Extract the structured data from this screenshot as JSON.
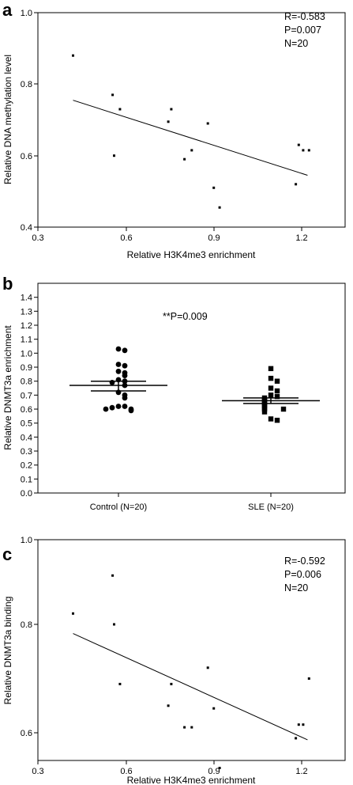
{
  "chart_data": [
    {
      "panel_letter": "a",
      "type": "scatter",
      "xlabel": "Relative H3K4me3 enrichment",
      "ylabel": "Relative DNA methylation level",
      "xlim": [
        0.3,
        1.25
      ],
      "ylim": [
        0.4,
        1.0
      ],
      "xticks": [
        "0.3",
        "0.6",
        "0.9",
        "1.2"
      ],
      "yticks": [
        "0.4",
        "0.6",
        "0.8",
        "1.0"
      ],
      "annotations": [
        "R=-0.583",
        "P=0.007",
        "N=20"
      ],
      "points": [
        {
          "x": 0.42,
          "y": 0.88
        },
        {
          "x": 0.555,
          "y": 0.77
        },
        {
          "x": 0.56,
          "y": 0.6
        },
        {
          "x": 0.58,
          "y": 0.73
        },
        {
          "x": 0.745,
          "y": 0.695
        },
        {
          "x": 0.755,
          "y": 0.73
        },
        {
          "x": 0.8,
          "y": 0.59
        },
        {
          "x": 0.825,
          "y": 0.615
        },
        {
          "x": 0.88,
          "y": 0.69
        },
        {
          "x": 0.9,
          "y": 0.51
        },
        {
          "x": 0.92,
          "y": 0.455
        },
        {
          "x": 1.18,
          "y": 0.52
        },
        {
          "x": 1.19,
          "y": 0.63
        },
        {
          "x": 1.205,
          "y": 0.615
        },
        {
          "x": 1.225,
          "y": 0.615
        }
      ],
      "fit_line": [
        {
          "x": 0.42,
          "y": 0.755
        },
        {
          "x": 1.22,
          "y": 0.545
        }
      ]
    },
    {
      "panel_letter": "b",
      "type": "scatter",
      "ylabel": "Relative DNMT3a enrichment",
      "categories": [
        "Control (N=20)",
        "SLE (N=20)"
      ],
      "ylim": [
        0.0,
        1.5
      ],
      "yticks": [
        "0.0",
        "0.1",
        "0.2",
        "0.3",
        "0.4",
        "0.5",
        "0.6",
        "0.7",
        "0.8",
        "0.9",
        "1.0",
        "1.1",
        "1.2",
        "1.3",
        "1.4"
      ],
      "annotations": [
        "**P=0.009"
      ],
      "series": [
        {
          "marker": "circle",
          "mean": 0.77,
          "sem_upper": 0.8,
          "sem_lower": 0.73,
          "values": [
            1.03,
            1.02,
            0.92,
            0.91,
            0.87,
            0.86,
            0.84,
            0.81,
            0.8,
            0.79,
            0.77,
            0.72,
            0.7,
            0.68,
            0.62,
            0.62,
            0.61,
            0.6,
            0.6,
            0.59
          ]
        },
        {
          "marker": "square",
          "mean": 0.66,
          "sem_upper": 0.68,
          "sem_lower": 0.64,
          "values": [
            0.89,
            0.82,
            0.8,
            0.75,
            0.73,
            0.7,
            0.69,
            0.68,
            0.67,
            0.66,
            0.65,
            0.64,
            0.63,
            0.62,
            0.61,
            0.6,
            0.6,
            0.58,
            0.53,
            0.52
          ]
        }
      ]
    },
    {
      "panel_letter": "c",
      "type": "scatter",
      "xlabel": "Relative H3K4me3 enrichment",
      "ylabel": "Relative DNMT3a binding",
      "xlim": [
        0.3,
        1.25
      ],
      "ylim": [
        0.52,
        1.0
      ],
      "xticks": [
        "0.3",
        "0.6",
        "0.9",
        "1.2"
      ],
      "yticks": [
        "0.6",
        "0.8",
        "1.0"
      ],
      "annotations": [
        "R=-0.592",
        "P=0.006",
        "N=20"
      ],
      "points": [
        {
          "x": 0.42,
          "y": 0.82
        },
        {
          "x": 0.555,
          "y": 0.89
        },
        {
          "x": 0.56,
          "y": 0.8
        },
        {
          "x": 0.58,
          "y": 0.69
        },
        {
          "x": 0.745,
          "y": 0.65
        },
        {
          "x": 0.755,
          "y": 0.69
        },
        {
          "x": 0.8,
          "y": 0.61
        },
        {
          "x": 0.825,
          "y": 0.61
        },
        {
          "x": 0.88,
          "y": 0.72
        },
        {
          "x": 0.9,
          "y": 0.645
        },
        {
          "x": 0.92,
          "y": 0.535
        },
        {
          "x": 1.18,
          "y": 0.59
        },
        {
          "x": 1.19,
          "y": 0.615
        },
        {
          "x": 1.205,
          "y": 0.615
        },
        {
          "x": 1.225,
          "y": 0.7
        }
      ],
      "fit_line": [
        {
          "x": 0.42,
          "y": 0.783
        },
        {
          "x": 1.22,
          "y": 0.587
        }
      ]
    }
  ]
}
